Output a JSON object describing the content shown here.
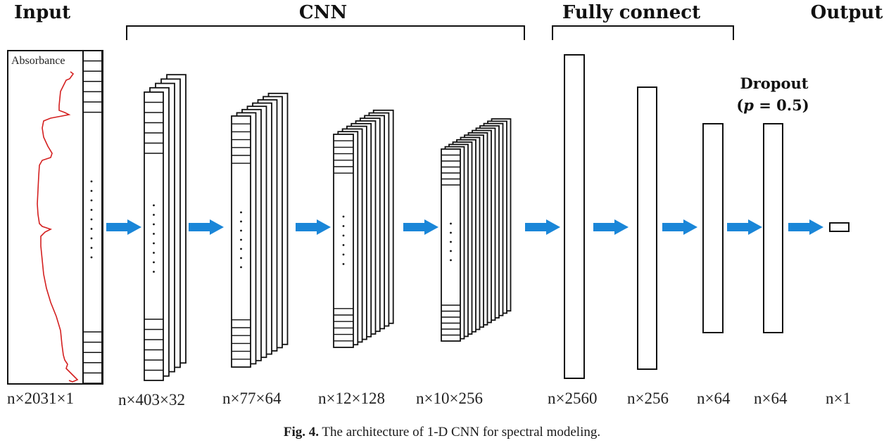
{
  "headers": {
    "input": "Input",
    "cnn": "CNN",
    "fully_connect": "Fully connect",
    "output": "Output"
  },
  "input_panel": {
    "label": "Absorbance",
    "curve_color": "#d42020"
  },
  "dropout": {
    "line1": "Dropout",
    "p_symbol": "p",
    "p_value": " = 0.5"
  },
  "dimensions": {
    "input": "n×2031×1",
    "cnn1": "n×403×32",
    "cnn2": "n×77×64",
    "cnn3": "n×12×128",
    "cnn4": "n×10×256",
    "fc1": "n×2560",
    "fc2": "n×256",
    "fc3": "n×64",
    "fc4": "n×64",
    "output": "n×1"
  },
  "arrow_color": "#1a86d8",
  "caption": {
    "label": "Fig. 4.",
    "text": "The architecture of 1-D CNN for spectral modeling."
  }
}
